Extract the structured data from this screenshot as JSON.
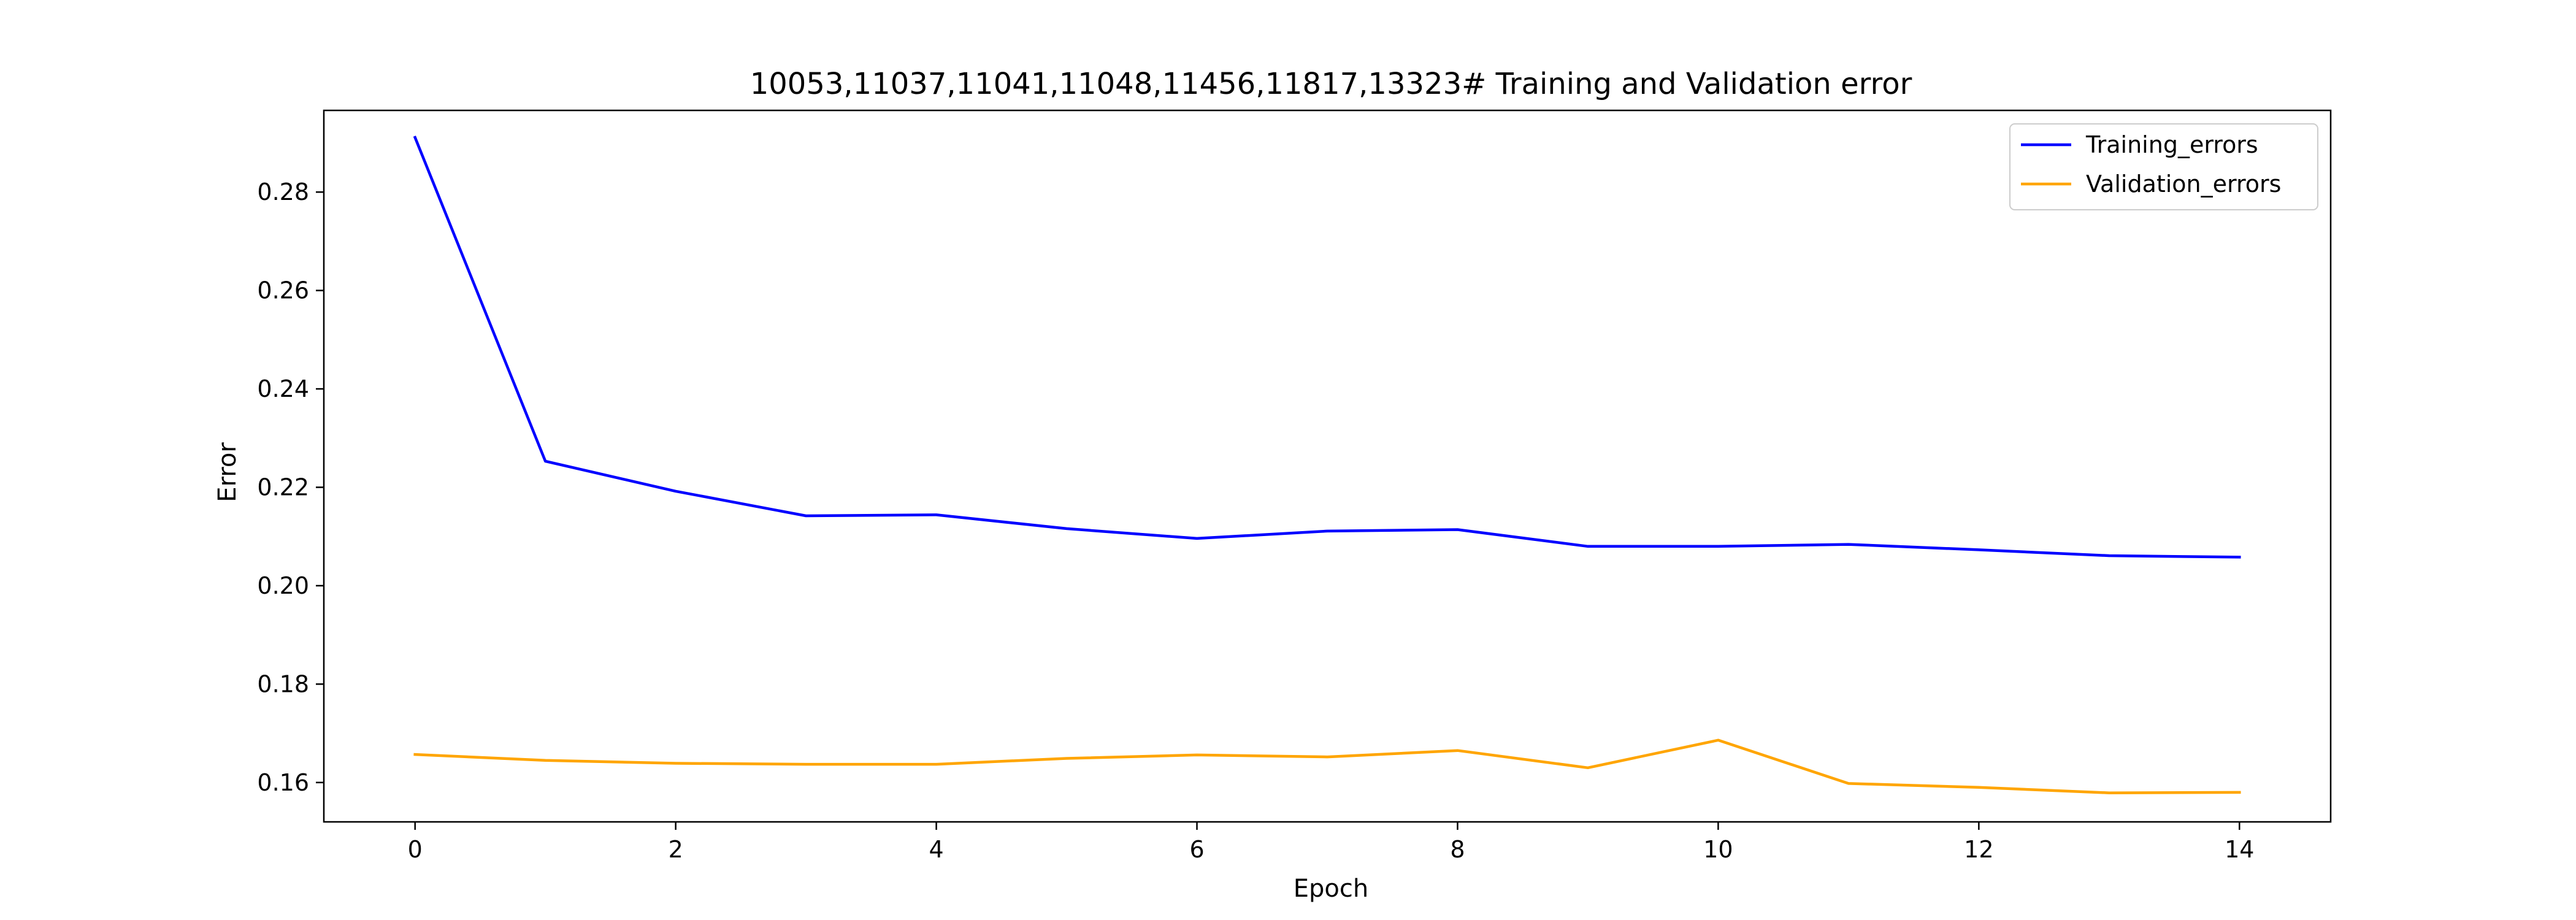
{
  "chart_data": {
    "type": "line",
    "title": "10053,11037,11041,11048,11456,11817,13323# Training and Validation error",
    "xlabel": "Epoch",
    "ylabel": "Error",
    "x": [
      0,
      1,
      2,
      3,
      4,
      5,
      6,
      7,
      8,
      9,
      10,
      11,
      12,
      13,
      14
    ],
    "xlim": [
      -0.7,
      14.7
    ],
    "ylim": [
      0.152,
      0.2966
    ],
    "xticks": [
      0,
      2,
      4,
      6,
      8,
      10,
      12,
      14
    ],
    "yticks": [
      0.16,
      0.18,
      0.2,
      0.22,
      0.24,
      0.26,
      0.28
    ],
    "ytick_labels": [
      "0.16",
      "0.18",
      "0.20",
      "0.22",
      "0.24",
      "0.26",
      "0.28"
    ],
    "grid": false,
    "legend_position": "top-right",
    "series": [
      {
        "name": "Training_errors",
        "color": "#0000ff",
        "values": [
          0.2911,
          0.2253,
          0.2192,
          0.2142,
          0.2144,
          0.2116,
          0.2096,
          0.2111,
          0.2114,
          0.208,
          0.208,
          0.2084,
          0.2073,
          0.2061,
          0.2058
        ]
      },
      {
        "name": "Validation_errors",
        "color": "#ffa500",
        "values": [
          0.1657,
          0.1645,
          0.1639,
          0.1637,
          0.1637,
          0.1649,
          0.1656,
          0.1652,
          0.1665,
          0.163,
          0.1686,
          0.1598,
          0.159,
          0.1579,
          0.158
        ]
      }
    ]
  }
}
